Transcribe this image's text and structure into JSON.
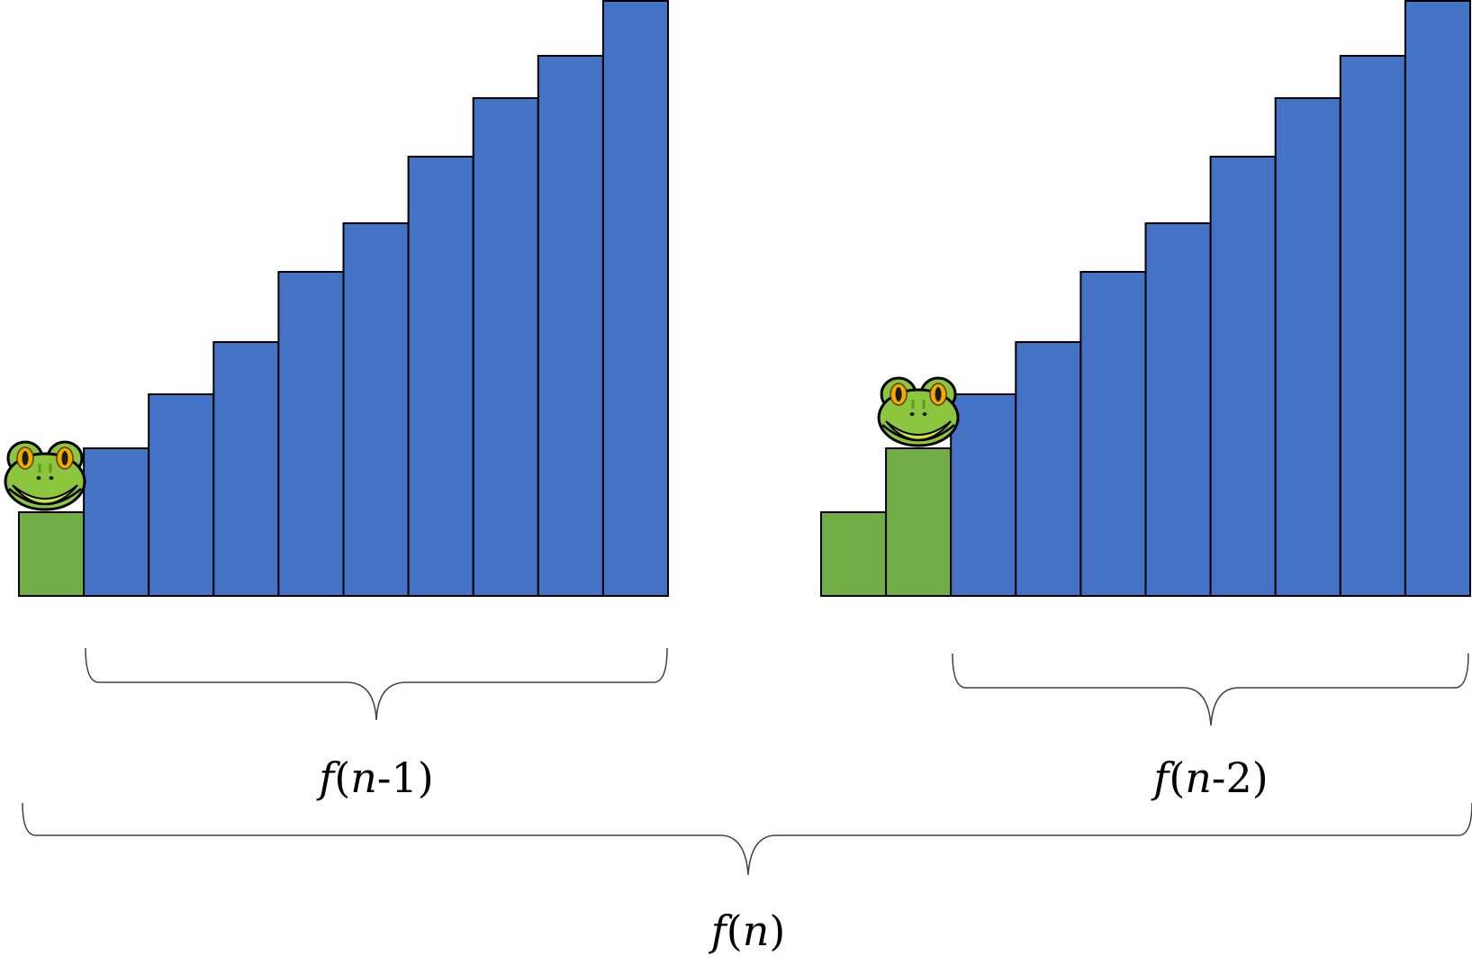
{
  "colors": {
    "climbed_step": "#70AD47",
    "remaining_step": "#4472C4",
    "step_outline": "#000000",
    "brace": "#404040"
  },
  "icons": {
    "frog": "frog-icon"
  },
  "left_staircase": {
    "step_heights": [
      1,
      2,
      3,
      4,
      5,
      6,
      7,
      8,
      9,
      10
    ],
    "climbed_steps": 1,
    "frog_on_step": 1
  },
  "right_staircase": {
    "step_heights": [
      1,
      2,
      3,
      4,
      5,
      6,
      7,
      8,
      9,
      10
    ],
    "climbed_steps": 2,
    "frog_on_step": 2
  },
  "labels": {
    "left": {
      "func": "f",
      "open": "(",
      "var": "n",
      "rest": "-1)"
    },
    "right": {
      "func": "f",
      "open": "(",
      "var": "n",
      "rest": "-2)"
    },
    "total": {
      "func": "f",
      "open": "(",
      "var": "n",
      "rest": ")"
    }
  }
}
